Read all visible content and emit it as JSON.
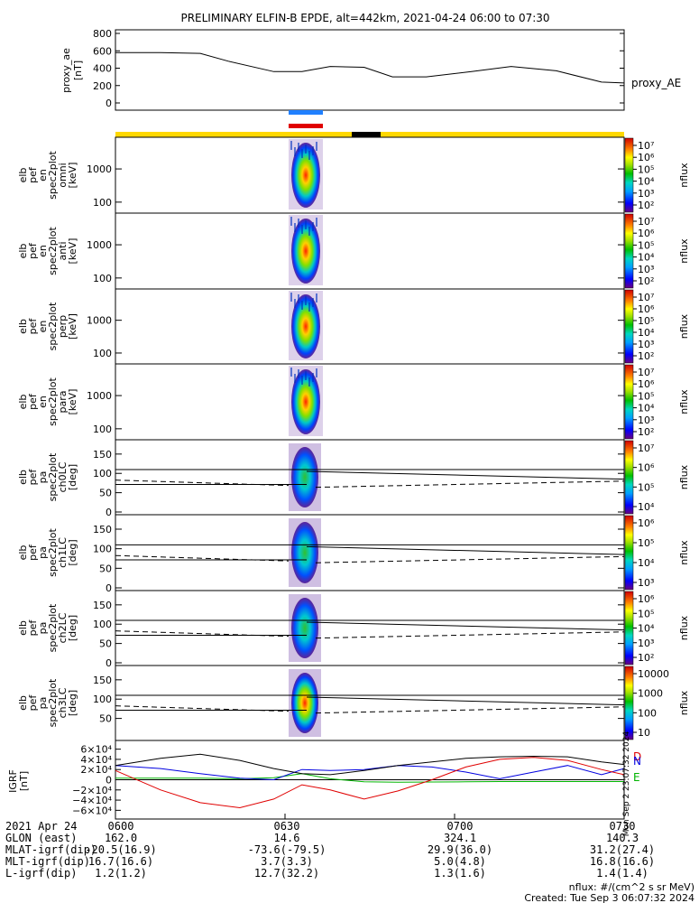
{
  "title": "PRELIMINARY ELFIN-B EPDE, alt=442km, 2021-04-24 06:00 to 07:30",
  "chart_data": [
    {
      "type": "line",
      "panel": "proxy_ae",
      "ylabel": [
        "proxy_ae",
        "[nT]"
      ],
      "legend": "proxy_AE",
      "ylim": [
        0,
        800
      ],
      "yticks": [
        "800",
        "600",
        "400",
        "200",
        "0"
      ],
      "x": [
        0,
        8,
        15,
        20,
        28,
        33,
        38,
        44,
        49,
        55,
        63,
        70,
        78,
        86,
        90
      ],
      "y": [
        580,
        580,
        570,
        480,
        360,
        360,
        420,
        410,
        300,
        300,
        360,
        420,
        370,
        240,
        230
      ]
    },
    {
      "type": "heatmap",
      "panel": "omni",
      "ylabel": [
        "elb",
        "pef",
        "en",
        "spec2plot",
        "omni",
        "[keV]"
      ],
      "ylim": [
        60,
        7000
      ],
      "yscale": "log",
      "yticks": [
        "1000",
        "100"
      ],
      "colorbar": [
        "10⁷",
        "10⁶",
        "10⁵",
        "10⁴",
        "10³",
        "10²"
      ],
      "colorbar_label": "nflux"
    },
    {
      "type": "heatmap",
      "panel": "anti",
      "ylabel": [
        "elb",
        "pef",
        "en",
        "spec2plot",
        "anti",
        "[keV]"
      ],
      "ylim": [
        60,
        7000
      ],
      "yscale": "log",
      "yticks": [
        "1000",
        "100"
      ],
      "colorbar": [
        "10⁷",
        "10⁶",
        "10⁵",
        "10⁴",
        "10³",
        "10²"
      ],
      "colorbar_label": "nflux"
    },
    {
      "type": "heatmap",
      "panel": "perp",
      "ylabel": [
        "elb",
        "pef",
        "en",
        "spec2plot",
        "perp",
        "[keV]"
      ],
      "ylim": [
        60,
        7000
      ],
      "yscale": "log",
      "yticks": [
        "1000",
        "100"
      ],
      "colorbar": [
        "10⁷",
        "10⁶",
        "10⁵",
        "10⁴",
        "10³",
        "10²"
      ],
      "colorbar_label": "nflux"
    },
    {
      "type": "heatmap",
      "panel": "para",
      "ylabel": [
        "elb",
        "pef",
        "en",
        "spec2plot",
        "para",
        "[keV]"
      ],
      "ylim": [
        60,
        7000
      ],
      "yscale": "log",
      "yticks": [
        "1000",
        "100"
      ],
      "colorbar": [
        "10⁷",
        "10⁶",
        "10⁵",
        "10⁴",
        "10³",
        "10²"
      ],
      "colorbar_label": "nflux"
    },
    {
      "type": "heatmap",
      "panel": "ch0LC",
      "ylabel": [
        "elb",
        "pef",
        "pa",
        "spec2plot",
        "ch0LC",
        "[deg]"
      ],
      "ylim": [
        0,
        180
      ],
      "yticks": [
        "150",
        "100",
        "50",
        "0"
      ],
      "colorbar": [
        "10⁷",
        "10⁶",
        "10⁵",
        "10⁴"
      ],
      "colorbar_label": "nflux"
    },
    {
      "type": "heatmap",
      "panel": "ch1LC",
      "ylabel": [
        "elb",
        "pef",
        "pa",
        "spec2plot",
        "ch1LC",
        "[deg]"
      ],
      "ylim": [
        0,
        180
      ],
      "yticks": [
        "150",
        "100",
        "50",
        "0"
      ],
      "colorbar": [
        "10⁶",
        "10⁵",
        "10⁴",
        "10³"
      ],
      "colorbar_label": "nflux"
    },
    {
      "type": "heatmap",
      "panel": "ch2LC",
      "ylabel": [
        "elb",
        "pef",
        "pa",
        "spec2plot",
        "ch2LC",
        "[deg]"
      ],
      "ylim": [
        0,
        180
      ],
      "yticks": [
        "150",
        "100",
        "50",
        "0"
      ],
      "colorbar": [
        "10⁶",
        "10⁵",
        "10⁴",
        "10³",
        "10²"
      ],
      "colorbar_label": "nflux"
    },
    {
      "type": "heatmap",
      "panel": "ch3LC",
      "ylabel": [
        "elb",
        "pef",
        "pa",
        "spec2plot",
        "ch3LC",
        "[deg]"
      ],
      "ylim": [
        0,
        180
      ],
      "yticks": [
        "150",
        "100",
        "50"
      ],
      "colorbar": [
        "10000",
        "1000",
        "100",
        "10"
      ],
      "colorbar_label": "nflux"
    },
    {
      "type": "line",
      "panel": "IGRF",
      "ylabel": [
        "IGRF",
        "[nT]"
      ],
      "ylim": [
        -70000,
        70000
      ],
      "yticks": [
        "6×10⁴",
        "4×10⁴",
        "2×10⁴",
        "0",
        "−2×10⁴",
        "−4×10⁴",
        "−6×10⁴"
      ],
      "x": [
        0,
        8,
        15,
        22,
        28,
        33,
        38,
        44,
        50,
        56,
        62,
        68,
        74,
        80,
        86,
        90
      ],
      "series": [
        {
          "name": "E",
          "color": "#00b400",
          "y": [
            3000,
            3000,
            3000,
            2000,
            4000,
            12000,
            2000,
            -4000,
            -5000,
            -4500,
            -4000,
            -3500,
            -3500,
            -3500,
            -3500,
            -3500
          ]
        },
        {
          "name": "N",
          "color": "#0000e0",
          "y": [
            28000,
            22000,
            12000,
            3000,
            0,
            20000,
            18000,
            20000,
            28000,
            25000,
            15000,
            2000,
            15000,
            28000,
            10000,
            22000
          ]
        },
        {
          "name": "D",
          "color": "#e00000",
          "y": [
            18000,
            -20000,
            -45000,
            -55000,
            -38000,
            -10000,
            -20000,
            -38000,
            -22000,
            0,
            25000,
            40000,
            44000,
            38000,
            20000,
            10000
          ]
        },
        {
          "name": "",
          "color": "#000000",
          "y": [
            28000,
            42000,
            50000,
            38000,
            22000,
            12000,
            10000,
            18000,
            28000,
            35000,
            42000,
            45000,
            46000,
            45000,
            35000,
            30000
          ]
        }
      ],
      "side_labels": [
        "D",
        "N",
        "E"
      ]
    }
  ],
  "xaxis": {
    "ticks": [
      "0600",
      "0630",
      "0700",
      "0730"
    ],
    "rows": [
      {
        "label": "2021 Apr 24",
        "values": [
          "0600",
          "0630",
          "0700",
          "0730"
        ]
      },
      {
        "label": "GLON (east)",
        "values": [
          "162.0",
          "14.6",
          "324.1",
          "140.3"
        ]
      },
      {
        "label": "MLAT-igrf(dip)",
        "values": [
          "-20.5(16.9)",
          "-73.6(-79.5)",
          "29.9(36.0)",
          "31.2(27.4)"
        ]
      },
      {
        "label": "MLT-igrf(dip)",
        "values": [
          "16.7(16.6)",
          "3.7(3.3)",
          "5.0(4.8)",
          "16.8(16.6)"
        ]
      },
      {
        "label": "L-igrf(dip)",
        "values": [
          "1.2(1.2)",
          "12.7(32.2)",
          "1.3(1.6)",
          "1.4(1.4)"
        ]
      }
    ]
  },
  "footer": {
    "units": "nflux: #/(cm^2 s sr MeV)",
    "created": "Created: Tue Sep  3 06:07:32 2024",
    "vertical_stamp": "Mon Sep  2 23:07:32 2024"
  },
  "colors": {
    "bar_yellow": "#ffd800",
    "bar_black": "#000000",
    "marker_blue": "#2080ff",
    "marker_red": "#e00000"
  }
}
